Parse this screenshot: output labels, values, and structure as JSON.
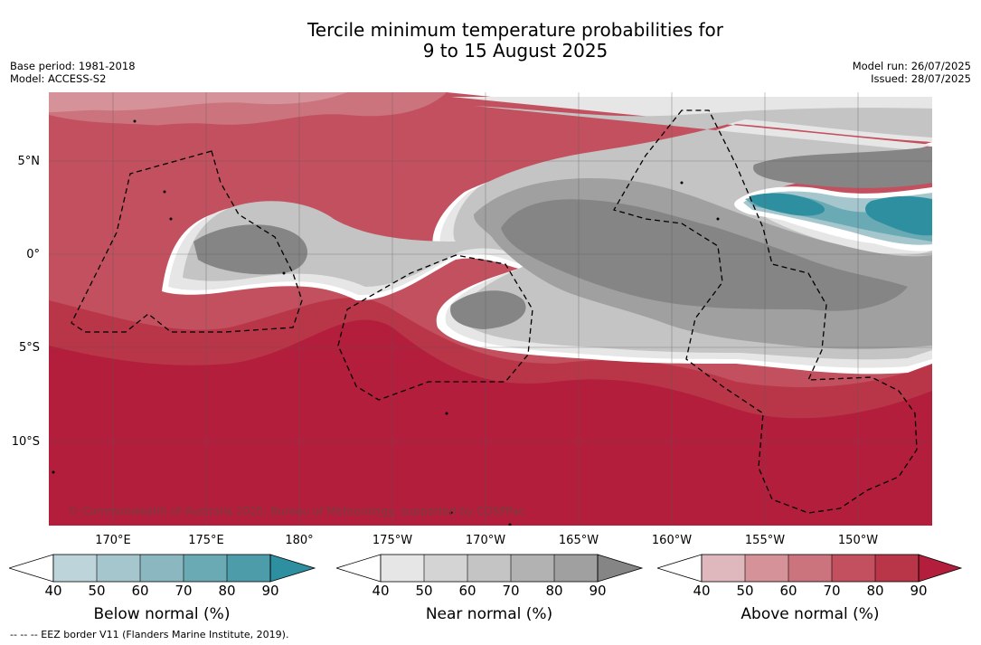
{
  "title": {
    "line1": "Tercile minimum temperature probabilities for",
    "line2": "9 to 15 August 2025"
  },
  "meta_left": {
    "base_period": "Base period: 1981-2018",
    "model": "Model: ACCESS-S2"
  },
  "meta_right": {
    "model_run": "Model run: 26/07/2025",
    "issued": "Issued: 28/07/2025"
  },
  "map": {
    "lat_labels": [
      "5°N",
      "0°",
      "5°S",
      "10°S"
    ],
    "lon_labels": [
      "170°E",
      "175°E",
      "180°",
      "175°W",
      "170°W",
      "165°W",
      "160°W",
      "155°W",
      "150°W"
    ],
    "copyright": "© Commonwealth of Australia 2025, Bureau of Meteorology, supported by COSPPac",
    "dominant_category": "Above normal",
    "colors": {
      "above": [
        "#ffffff",
        "#dfb8bd",
        "#d69299",
        "#cc747d",
        "#c3505e",
        "#b93548",
        "#b21e3c"
      ],
      "near": [
        "#ffffff",
        "#e6e6e6",
        "#d4d4d4",
        "#c4c4c4",
        "#b2b2b2",
        "#a0a0a0",
        "#858585"
      ],
      "below": [
        "#ffffff",
        "#bcd4da",
        "#a4c6cc",
        "#8ab7c0",
        "#6aaab5",
        "#4c9caa",
        "#2e8fa0"
      ]
    }
  },
  "colorbars": [
    {
      "label": "Below normal (%)",
      "ticks": [
        "40",
        "50",
        "60",
        "70",
        "80",
        "90"
      ]
    },
    {
      "label": "Near normal (%)",
      "ticks": [
        "40",
        "50",
        "60",
        "70",
        "80",
        "90"
      ]
    },
    {
      "label": "Above normal (%)",
      "ticks": [
        "40",
        "50",
        "60",
        "70",
        "80",
        "90"
      ]
    }
  ],
  "footnote": "-- -- -- EEZ border V11 (Flanders Marine Institute, 2019)."
}
